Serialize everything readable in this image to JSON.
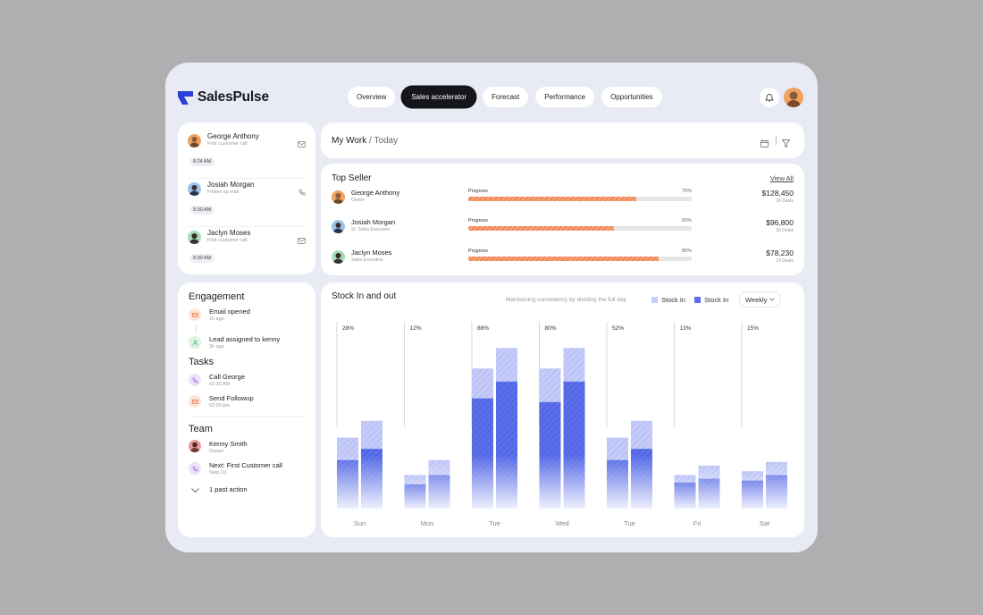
{
  "brand": {
    "name": "SalesPulse"
  },
  "nav": {
    "tabs": [
      "Overview",
      "Sales accelerator",
      "Forecast",
      "Performance",
      "Opportunities"
    ],
    "active": "Sales accelerator"
  },
  "calls": [
    {
      "name": "George Anthony",
      "sub": "First customer call",
      "time": "8:24 AM",
      "icon": "mail-icon"
    },
    {
      "name": "Josiah Morgan",
      "sub": "Follow up mail",
      "time": "9:30 AM",
      "icon": "phone-icon"
    },
    {
      "name": "Jaclyn Moses",
      "sub": "First customer call",
      "time": "9:30 AM",
      "icon": "mail-icon"
    }
  ],
  "engagement": {
    "title": "Engagement",
    "items": [
      {
        "label": "Email opened",
        "time": "1h ago"
      },
      {
        "label": "Lead assigned to kenny",
        "time": "3h ago"
      }
    ]
  },
  "tasks": {
    "title": "Tasks",
    "items": [
      {
        "label": "Call George",
        "time": "10:30 AM"
      },
      {
        "label": "Send Followup",
        "time": "02:00 pm"
      }
    ]
  },
  "team": {
    "title": "Team",
    "member": {
      "name": "Kenny Smith",
      "role": "Owner"
    },
    "next": {
      "label": "Next: First Customer call",
      "step": "Step (1)"
    },
    "past": "1 past action"
  },
  "mywork": {
    "title": "My Work",
    "sep": " / ",
    "today": "Today"
  },
  "top_seller": {
    "title": "Top Seller",
    "view_all": "View All",
    "progress_label": "Progress",
    "rows": [
      {
        "name": "George Anthony",
        "role": "Owner",
        "progress": 75,
        "pct": "75%",
        "amount": "$128,450",
        "deals": "24 Deals"
      },
      {
        "name": "Josiah Morgan",
        "role": "Sr. Sales Executive",
        "progress": 65,
        "pct": "65%",
        "amount": "$96,800",
        "deals": "18 Deals"
      },
      {
        "name": "Jaclyn Moses",
        "role": "Sales Executive",
        "progress": 85,
        "pct": "85%",
        "amount": "$78,230",
        "deals": "14 Deals"
      }
    ]
  },
  "stock": {
    "title": "Stock In and out",
    "caption": "Maintaining consistency by dividing the full day",
    "legend": [
      "Stock In",
      "Stock In"
    ],
    "filter": "Weekly"
  },
  "colors": {
    "light": "#c6cdf9",
    "dark": "#5b6fea",
    "accent": "#f08754"
  },
  "chart_data": {
    "type": "bar",
    "title": "Stock In and out",
    "categories": [
      "Sun",
      "Mon",
      "Tue",
      "Wed",
      "Tue",
      "Fri",
      "Sat"
    ],
    "pct_labels": [
      "28%",
      "12%",
      "88%",
      "80%",
      "52%",
      "13%",
      "15%"
    ],
    "series": [
      {
        "name": "Stock In",
        "values": [
          [
            38,
            47
          ],
          [
            18,
            26
          ],
          [
            75,
            86
          ],
          [
            75,
            86
          ],
          [
            38,
            47
          ],
          [
            18,
            23
          ],
          [
            20,
            25
          ]
        ]
      },
      {
        "name": "Stock In",
        "values": [
          [
            26,
            32
          ],
          [
            13,
            18
          ],
          [
            59,
            68
          ],
          [
            57,
            68
          ],
          [
            26,
            32
          ],
          [
            14,
            16
          ],
          [
            15,
            18
          ]
        ]
      }
    ]
  }
}
